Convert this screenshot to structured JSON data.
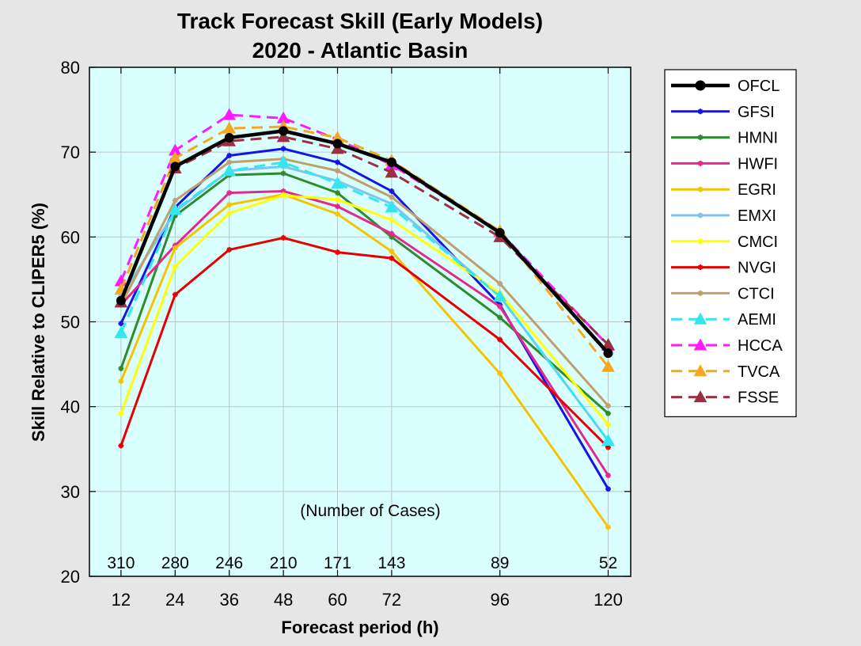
{
  "chart_data": {
    "type": "line",
    "title": [
      "Track Forecast Skill (Early Models)",
      "2020 - Atlantic Basin"
    ],
    "xlabel": "Forecast period (h)",
    "ylabel": "Skill Relative to CLIPER5 (%)",
    "x": [
      12,
      24,
      36,
      48,
      60,
      72,
      96,
      120
    ],
    "x_ticks": [
      "12",
      "24",
      "36",
      "48",
      "60",
      "72",
      "96",
      "120"
    ],
    "xlim": [
      5,
      125
    ],
    "ylim": [
      20,
      80
    ],
    "y_ticks": [
      "20",
      "30",
      "40",
      "50",
      "60",
      "70",
      "80"
    ],
    "grid": true,
    "legend_position": "outside-right",
    "background_color": "#d9ffff",
    "cases_label": "(Number of Cases)",
    "cases": [
      "310",
      "280",
      "246",
      "210",
      "171",
      "143",
      "89",
      "52"
    ],
    "series": [
      {
        "name": "OFCL",
        "color": "#000000",
        "style": "solid",
        "marker": "circle",
        "values": [
          52.5,
          68.3,
          71.7,
          72.5,
          71.0,
          68.8,
          60.5,
          46.3
        ]
      },
      {
        "name": "GFSI",
        "color": "#1414e6",
        "style": "solid",
        "marker": "star",
        "values": [
          49.8,
          63.5,
          69.6,
          70.4,
          68.8,
          65.4,
          52.0,
          30.3
        ]
      },
      {
        "name": "HMNI",
        "color": "#2e8b2e",
        "style": "solid",
        "marker": "star",
        "values": [
          44.5,
          62.5,
          67.3,
          67.5,
          65.2,
          60.0,
          50.5,
          39.2
        ]
      },
      {
        "name": "HWFI",
        "color": "#e6288c",
        "style": "solid",
        "marker": "star",
        "values": [
          52.0,
          59.0,
          65.2,
          65.4,
          63.6,
          60.4,
          51.8,
          31.9
        ]
      },
      {
        "name": "EGRI",
        "color": "#f5c400",
        "style": "solid",
        "marker": "star",
        "values": [
          43.0,
          58.7,
          63.8,
          65.0,
          62.7,
          58.3,
          43.9,
          25.8
        ]
      },
      {
        "name": "EMXI",
        "color": "#7fc4ee",
        "style": "solid",
        "marker": "star",
        "values": [
          53.0,
          63.0,
          67.8,
          68.3,
          66.6,
          63.9,
          53.0,
          36.0
        ]
      },
      {
        "name": "CMCI",
        "color": "#ffff00",
        "style": "solid",
        "marker": "star",
        "values": [
          39.2,
          56.5,
          62.8,
          64.9,
          64.4,
          62.0,
          53.4,
          37.9
        ]
      },
      {
        "name": "NVGI",
        "color": "#e60000",
        "style": "solid",
        "marker": "star",
        "values": [
          35.4,
          53.2,
          58.5,
          59.9,
          58.2,
          57.5,
          47.9,
          35.2
        ]
      },
      {
        "name": "CTCI",
        "color": "#bfa06a",
        "style": "solid",
        "marker": "star",
        "values": [
          52.0,
          64.3,
          68.8,
          69.2,
          67.8,
          64.7,
          54.5,
          40.1
        ]
      },
      {
        "name": "AEMI",
        "color": "#33e6f0",
        "style": "dashed",
        "marker": "triangle",
        "values": [
          48.7,
          63.2,
          67.8,
          68.8,
          66.3,
          63.5,
          53.0,
          36.0
        ]
      },
      {
        "name": "HCCA",
        "color": "#ff1aff",
        "style": "dashed",
        "marker": "triangle",
        "values": [
          54.8,
          70.2,
          74.4,
          74.0,
          71.5,
          68.5,
          60.6,
          47.2
        ]
      },
      {
        "name": "TVCA",
        "color": "#f5a81e",
        "style": "dashed",
        "marker": "triangle",
        "values": [
          53.8,
          69.3,
          72.8,
          73.0,
          71.7,
          69.0,
          60.7,
          44.7
        ]
      },
      {
        "name": "FSSE",
        "color": "#9c3040",
        "style": "dashed",
        "marker": "triangle",
        "values": [
          52.3,
          68.1,
          71.3,
          71.8,
          70.4,
          67.6,
          60.0,
          47.3
        ]
      }
    ]
  }
}
